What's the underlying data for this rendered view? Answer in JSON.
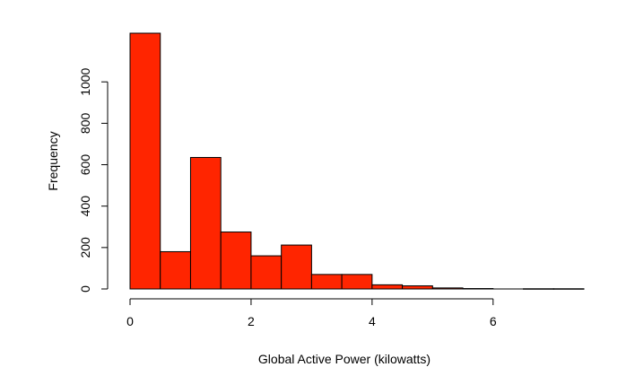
{
  "chart_data": {
    "type": "bar",
    "title": "",
    "xlabel": "Global Active Power (kilowatts)",
    "ylabel": "Frequency",
    "bar_color": "#ff2500",
    "bin_width": 0.5,
    "bins": [
      {
        "x0": 0.0,
        "x1": 0.5,
        "count": 1235
      },
      {
        "x0": 0.5,
        "x1": 1.0,
        "count": 180
      },
      {
        "x0": 1.0,
        "x1": 1.5,
        "count": 635
      },
      {
        "x0": 1.5,
        "x1": 2.0,
        "count": 275
      },
      {
        "x0": 2.0,
        "x1": 2.5,
        "count": 160
      },
      {
        "x0": 2.5,
        "x1": 3.0,
        "count": 212
      },
      {
        "x0": 3.0,
        "x1": 3.5,
        "count": 70
      },
      {
        "x0": 3.5,
        "x1": 4.0,
        "count": 70
      },
      {
        "x0": 4.0,
        "x1": 4.5,
        "count": 20
      },
      {
        "x0": 4.5,
        "x1": 5.0,
        "count": 15
      },
      {
        "x0": 5.0,
        "x1": 5.5,
        "count": 5
      },
      {
        "x0": 5.5,
        "x1": 6.0,
        "count": 2
      },
      {
        "x0": 6.0,
        "x1": 6.5,
        "count": 0
      },
      {
        "x0": 6.5,
        "x1": 7.0,
        "count": 1
      },
      {
        "x0": 7.0,
        "x1": 7.5,
        "count": 1
      }
    ],
    "xlim": [
      0,
      7.5
    ],
    "ylim": [
      0,
      1235
    ],
    "x_ticks": [
      0,
      2,
      4,
      6
    ],
    "y_ticks": [
      0,
      200,
      400,
      600,
      800,
      1000
    ],
    "grid": false,
    "legend": "none"
  }
}
